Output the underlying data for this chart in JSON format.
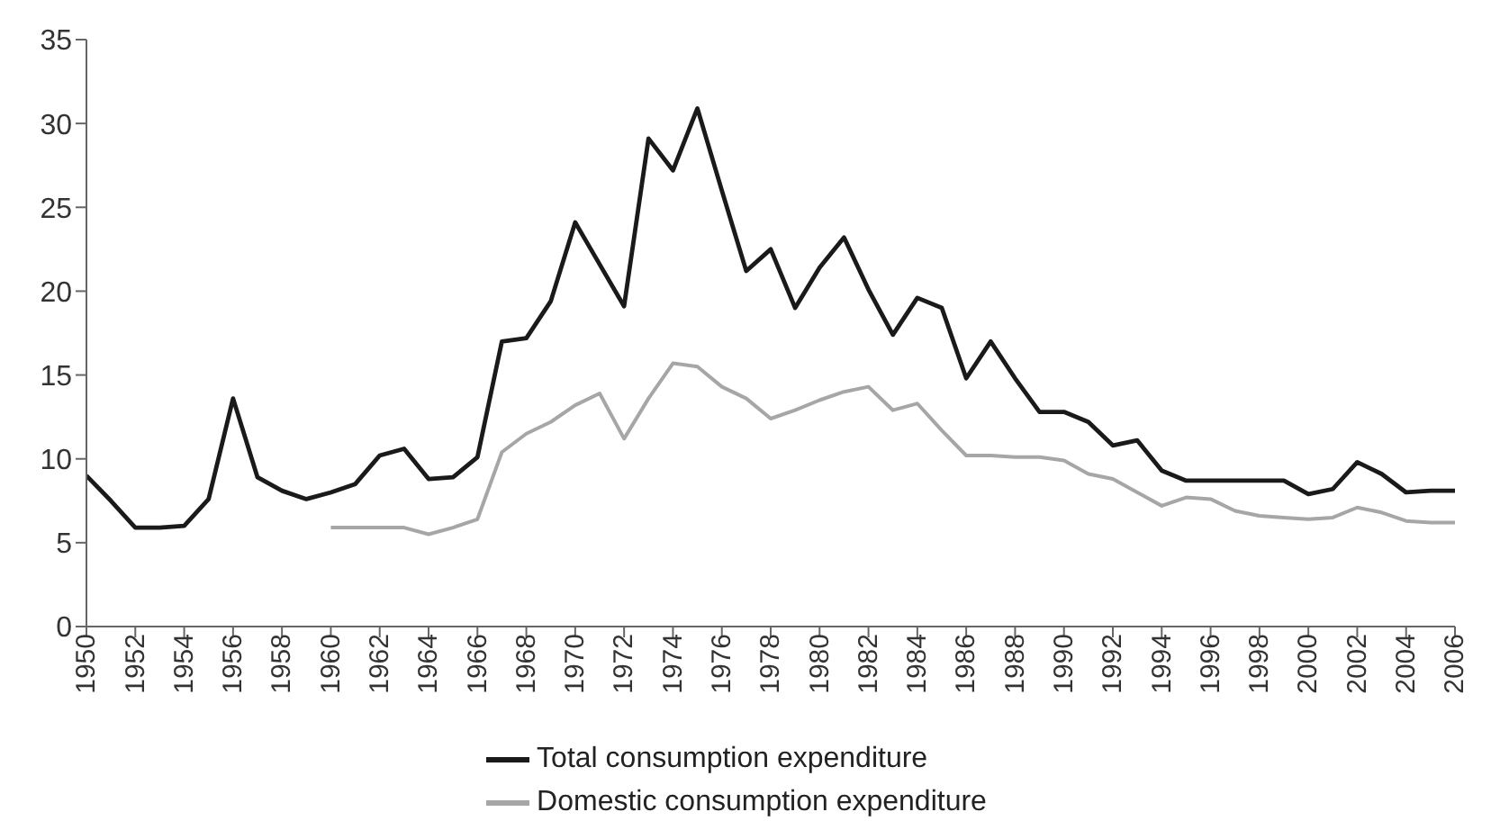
{
  "chart_data": {
    "type": "line",
    "x": [
      1950,
      1951,
      1952,
      1953,
      1954,
      1955,
      1956,
      1957,
      1958,
      1959,
      1960,
      1961,
      1962,
      1963,
      1964,
      1965,
      1966,
      1967,
      1968,
      1969,
      1970,
      1971,
      1972,
      1973,
      1974,
      1975,
      1976,
      1977,
      1978,
      1979,
      1980,
      1981,
      1982,
      1983,
      1984,
      1985,
      1986,
      1987,
      1988,
      1989,
      1990,
      1991,
      1992,
      1993,
      1994,
      1995,
      1996,
      1997,
      1998,
      1999,
      2000,
      2001,
      2002,
      2003,
      2004,
      2005,
      2006
    ],
    "series": [
      {
        "name": "Total consumption expenditure",
        "color": "#1a1a1a",
        "values": [
          9.0,
          7.5,
          5.9,
          5.9,
          6.0,
          7.6,
          13.6,
          8.9,
          8.1,
          7.6,
          8.0,
          8.5,
          10.2,
          10.6,
          8.8,
          8.9,
          10.1,
          17.0,
          17.2,
          19.4,
          24.1,
          21.6,
          19.1,
          29.1,
          27.2,
          30.9,
          26.0,
          21.2,
          22.5,
          19.0,
          21.4,
          23.2,
          20.1,
          17.4,
          19.6,
          19.0,
          14.8,
          17.0,
          14.8,
          12.8,
          12.8,
          12.2,
          10.8,
          11.1,
          9.3,
          8.7,
          8.7,
          8.7,
          8.7,
          8.7,
          7.9,
          8.2,
          9.8,
          9.1,
          8.0,
          8.1,
          8.1
        ]
      },
      {
        "name": "Domestic consumption expenditure",
        "color": "#a6a6a6",
        "values": [
          null,
          null,
          null,
          null,
          null,
          null,
          null,
          null,
          null,
          null,
          5.9,
          5.9,
          5.9,
          5.9,
          5.5,
          5.9,
          6.4,
          10.4,
          11.5,
          12.2,
          13.2,
          13.9,
          11.2,
          13.6,
          15.7,
          15.5,
          14.3,
          13.6,
          12.4,
          12.9,
          13.5,
          14.0,
          14.3,
          12.9,
          13.3,
          11.7,
          10.2,
          10.2,
          10.1,
          10.1,
          9.9,
          9.1,
          8.8,
          8.0,
          7.2,
          7.7,
          7.6,
          6.9,
          6.6,
          6.5,
          6.4,
          6.5,
          7.1,
          6.8,
          6.3,
          6.2,
          6.2
        ]
      }
    ],
    "xlim": [
      1950,
      2006
    ],
    "xticks": [
      1950,
      1952,
      1954,
      1956,
      1958,
      1960,
      1962,
      1964,
      1966,
      1968,
      1970,
      1972,
      1974,
      1976,
      1978,
      1980,
      1982,
      1984,
      1986,
      1988,
      1990,
      1992,
      1994,
      1996,
      1998,
      2000,
      2002,
      2004,
      2006
    ],
    "ylim": [
      0,
      35
    ],
    "yticks": [
      0,
      5,
      10,
      15,
      20,
      25,
      30,
      35
    ],
    "grid": false,
    "legend": "bottom",
    "marker": "none",
    "line_style": "solid"
  }
}
